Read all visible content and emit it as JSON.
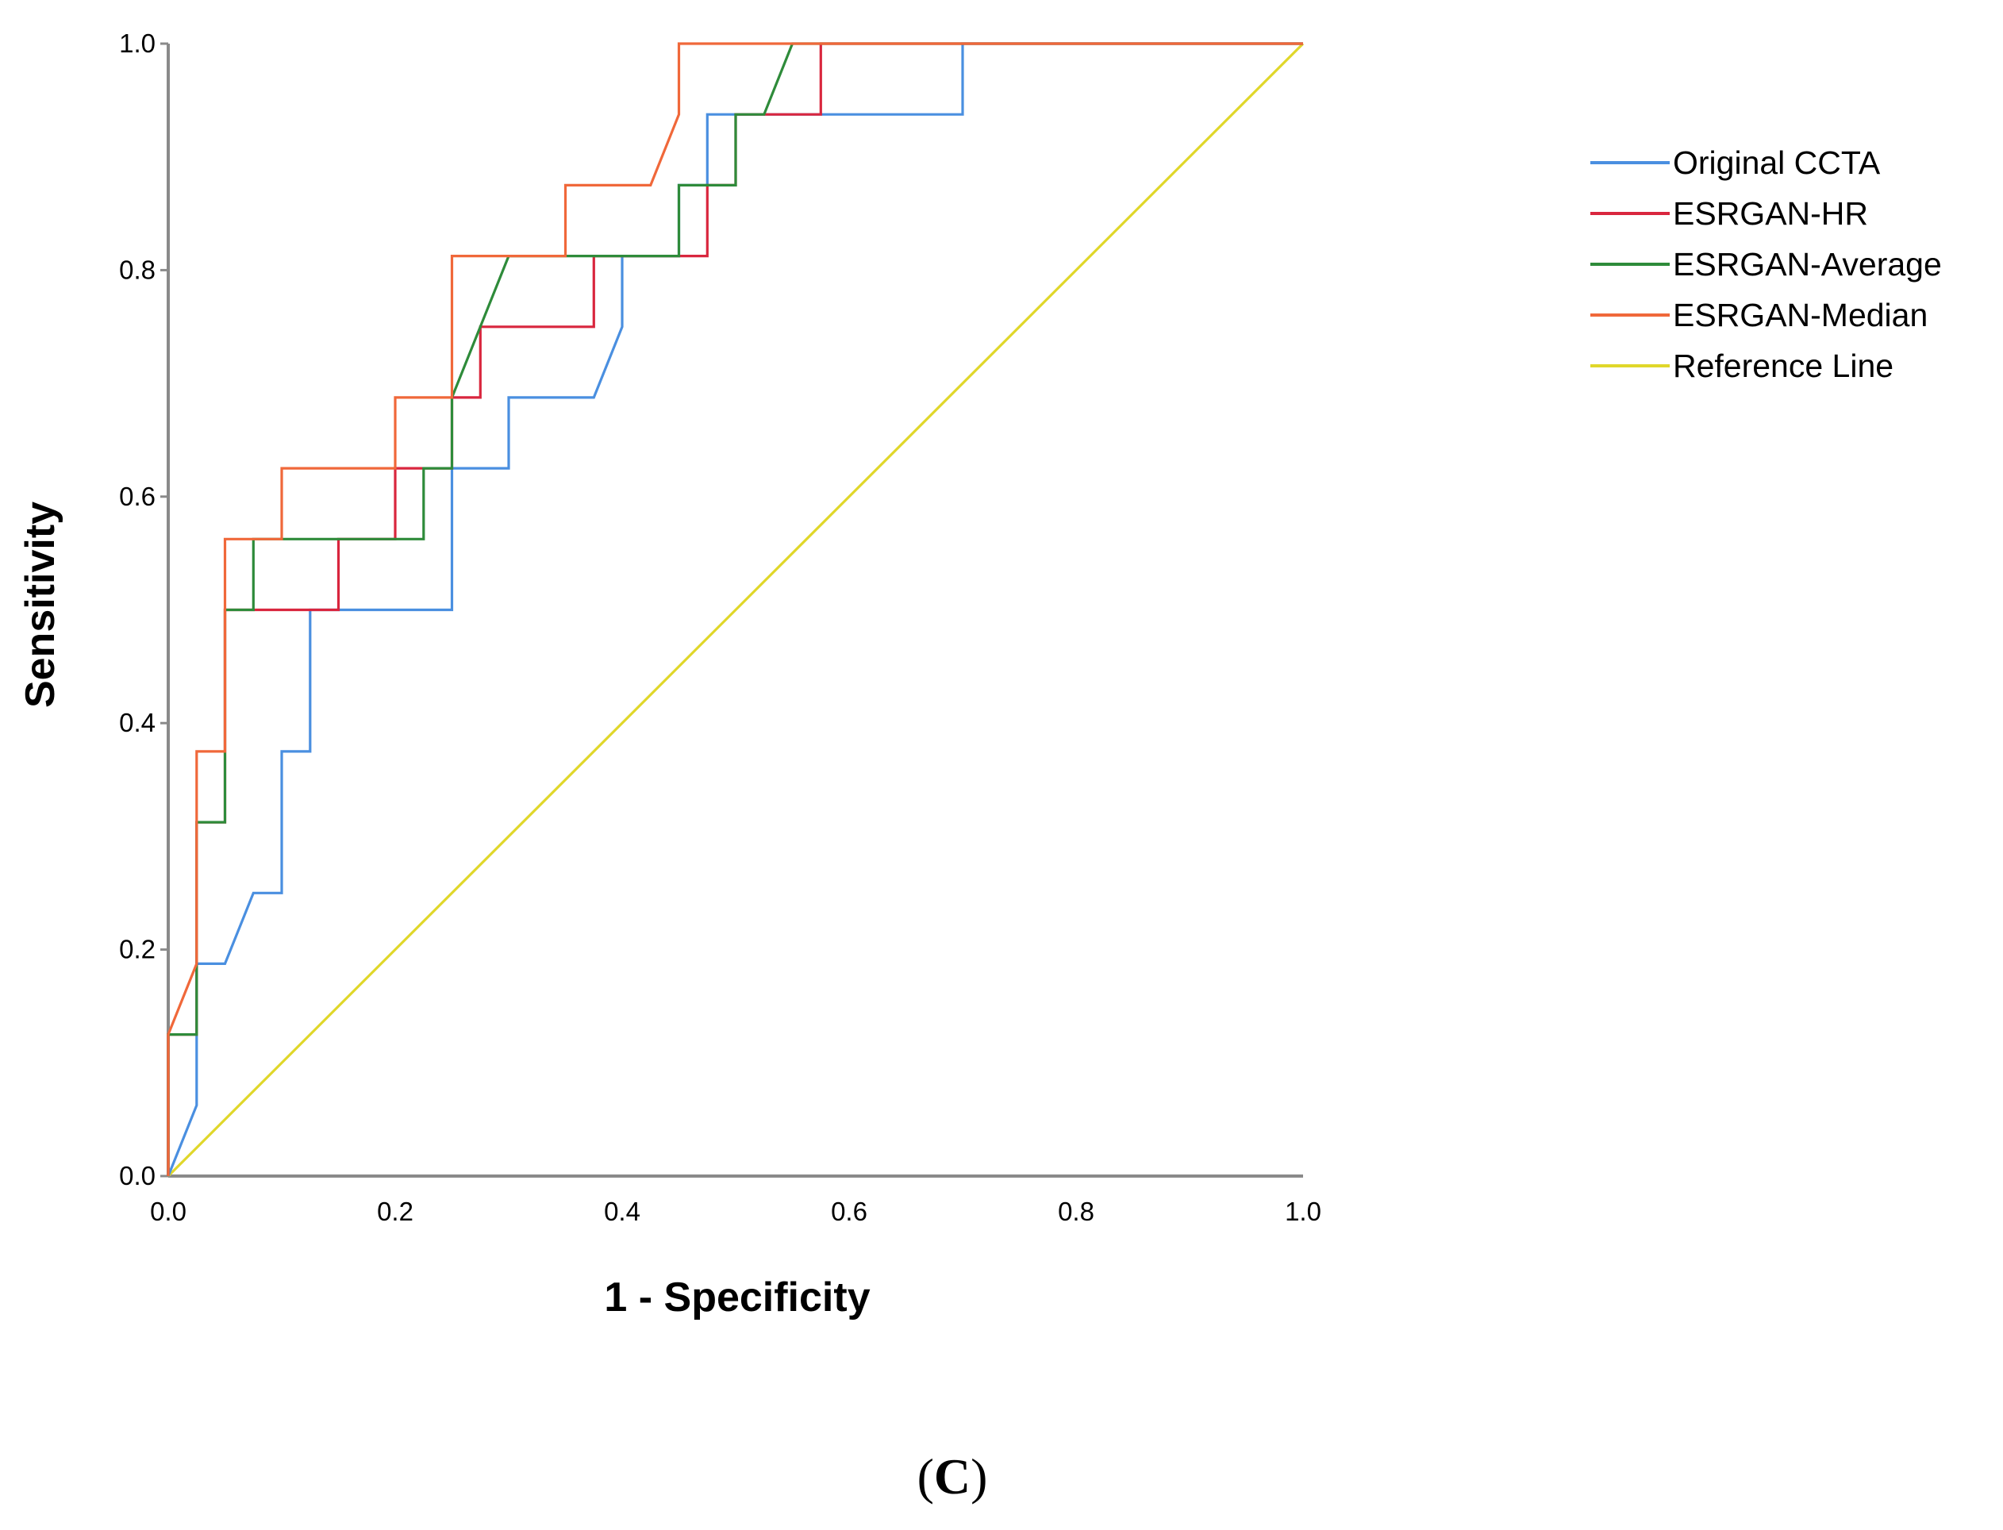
{
  "chart_data": {
    "type": "line",
    "title": "",
    "xlabel": "1 - Specificity",
    "ylabel": "Sensitivity",
    "xlim": [
      0,
      1
    ],
    "ylim": [
      0,
      1
    ],
    "x_ticks": [
      "0.0",
      "0.2",
      "0.4",
      "0.6",
      "0.8",
      "1.0"
    ],
    "y_ticks": [
      "0.0",
      "0.2",
      "0.4",
      "0.6",
      "0.8",
      "1.0"
    ],
    "x_tick_values": [
      0,
      0.2,
      0.4,
      0.6,
      0.8,
      1.0
    ],
    "y_tick_values": [
      0,
      0.2,
      0.4,
      0.6,
      0.8,
      1.0
    ],
    "grid": false,
    "legend_position": "right",
    "series": [
      {
        "name": "Original CCTA",
        "color": "#4a8fe0",
        "points": [
          [
            0,
            0
          ],
          [
            0.025,
            0.0625
          ],
          [
            0.025,
            0.1875
          ],
          [
            0.05,
            0.1875
          ],
          [
            0.075,
            0.25
          ],
          [
            0.1,
            0.25
          ],
          [
            0.1,
            0.375
          ],
          [
            0.125,
            0.375
          ],
          [
            0.125,
            0.5
          ],
          [
            0.25,
            0.5
          ],
          [
            0.25,
            0.625
          ],
          [
            0.3,
            0.625
          ],
          [
            0.3,
            0.6875
          ],
          [
            0.375,
            0.6875
          ],
          [
            0.4,
            0.75
          ],
          [
            0.4,
            0.8125
          ],
          [
            0.45,
            0.8125
          ],
          [
            0.45,
            0.875
          ],
          [
            0.475,
            0.875
          ],
          [
            0.475,
            0.9375
          ],
          [
            0.7,
            0.9375
          ],
          [
            0.7,
            1.0
          ],
          [
            1.0,
            1.0
          ]
        ]
      },
      {
        "name": "ESRGAN-HR",
        "color": "#d9263e",
        "points": [
          [
            0,
            0
          ],
          [
            0,
            0.125
          ],
          [
            0.025,
            0.125
          ],
          [
            0.025,
            0.3125
          ],
          [
            0.05,
            0.3125
          ],
          [
            0.05,
            0.5
          ],
          [
            0.15,
            0.5
          ],
          [
            0.15,
            0.5625
          ],
          [
            0.2,
            0.5625
          ],
          [
            0.2,
            0.625
          ],
          [
            0.25,
            0.625
          ],
          [
            0.25,
            0.6875
          ],
          [
            0.275,
            0.6875
          ],
          [
            0.275,
            0.75
          ],
          [
            0.375,
            0.75
          ],
          [
            0.375,
            0.8125
          ],
          [
            0.475,
            0.8125
          ],
          [
            0.475,
            0.875
          ],
          [
            0.5,
            0.875
          ],
          [
            0.5,
            0.9375
          ],
          [
            0.575,
            0.9375
          ],
          [
            0.575,
            1.0
          ],
          [
            1.0,
            1.0
          ]
        ]
      },
      {
        "name": "ESRGAN-Average",
        "color": "#2e8b3a",
        "points": [
          [
            0,
            0
          ],
          [
            0,
            0.125
          ],
          [
            0.025,
            0.125
          ],
          [
            0.025,
            0.3125
          ],
          [
            0.05,
            0.3125
          ],
          [
            0.05,
            0.5
          ],
          [
            0.075,
            0.5
          ],
          [
            0.075,
            0.5625
          ],
          [
            0.225,
            0.5625
          ],
          [
            0.225,
            0.625
          ],
          [
            0.25,
            0.625
          ],
          [
            0.25,
            0.6875
          ],
          [
            0.3,
            0.8125
          ],
          [
            0.45,
            0.8125
          ],
          [
            0.45,
            0.875
          ],
          [
            0.5,
            0.875
          ],
          [
            0.5,
            0.9375
          ],
          [
            0.525,
            0.9375
          ],
          [
            0.55,
            1.0
          ],
          [
            1.0,
            1.0
          ]
        ]
      },
      {
        "name": "ESRGAN-Median",
        "color": "#f0683a",
        "points": [
          [
            0,
            0
          ],
          [
            0,
            0.125
          ],
          [
            0.025,
            0.1875
          ],
          [
            0.025,
            0.375
          ],
          [
            0.05,
            0.375
          ],
          [
            0.05,
            0.5625
          ],
          [
            0.1,
            0.5625
          ],
          [
            0.1,
            0.625
          ],
          [
            0.2,
            0.625
          ],
          [
            0.2,
            0.6875
          ],
          [
            0.25,
            0.6875
          ],
          [
            0.25,
            0.8125
          ],
          [
            0.35,
            0.8125
          ],
          [
            0.35,
            0.875
          ],
          [
            0.425,
            0.875
          ],
          [
            0.45,
            0.9375
          ],
          [
            0.45,
            1.0
          ],
          [
            1.0,
            1.0
          ]
        ]
      },
      {
        "name": "Reference Line",
        "color": "#e0d72a",
        "points": [
          [
            0,
            0
          ],
          [
            1,
            1
          ]
        ]
      }
    ]
  },
  "caption": {
    "open": "(",
    "letter": "C",
    "close": ")"
  }
}
